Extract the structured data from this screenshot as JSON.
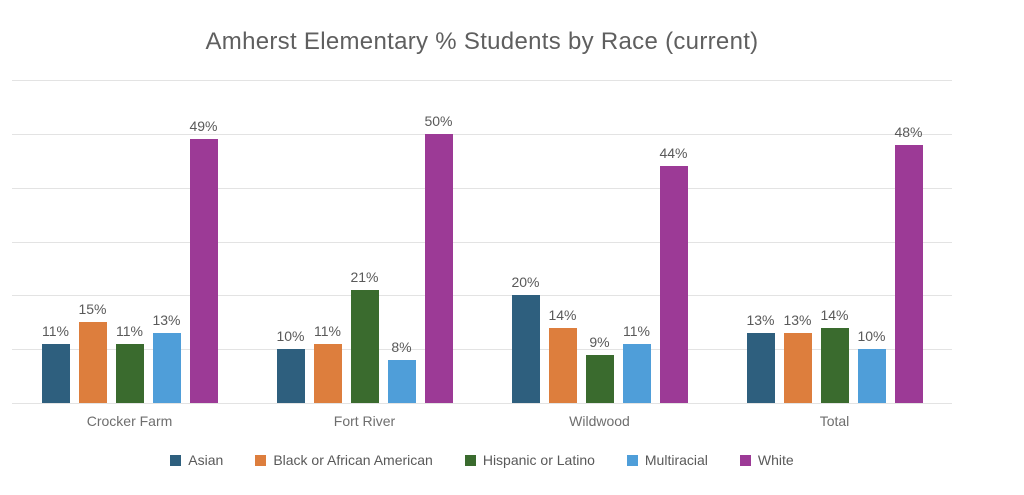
{
  "chart_data": {
    "type": "bar",
    "title": "Amherst Elementary % Students by Race (current)",
    "categories": [
      "Crocker Farm",
      "Fort River",
      "Wildwood",
      "Total"
    ],
    "series": [
      {
        "name": "Asian",
        "color": "#2e5f7e",
        "values": [
          11,
          10,
          20,
          13
        ]
      },
      {
        "name": "Black or African American",
        "color": "#dd7e3d",
        "values": [
          15,
          11,
          14,
          13
        ]
      },
      {
        "name": "Hispanic or Latino",
        "color": "#3a6b2e",
        "values": [
          11,
          21,
          9,
          14
        ]
      },
      {
        "name": "Multiracial",
        "color": "#4f9ed9",
        "values": [
          13,
          8,
          11,
          10
        ]
      },
      {
        "name": "White",
        "color": "#9c3a96",
        "values": [
          49,
          50,
          44,
          48
        ]
      }
    ],
    "value_suffix": "%",
    "ylim": [
      0,
      60
    ],
    "gridline_step": 10,
    "grid": true,
    "y_tick_labels_visible": false,
    "legend_position": "bottom",
    "xlabel": "",
    "ylabel": ""
  },
  "colors": {
    "background": "#ffffff",
    "gridline": "#e3e3e3",
    "title_text": "#5f5f5f",
    "data_label_text": "#595959",
    "axis_label_text": "#6e6e6e",
    "legend_text": "#595959"
  }
}
